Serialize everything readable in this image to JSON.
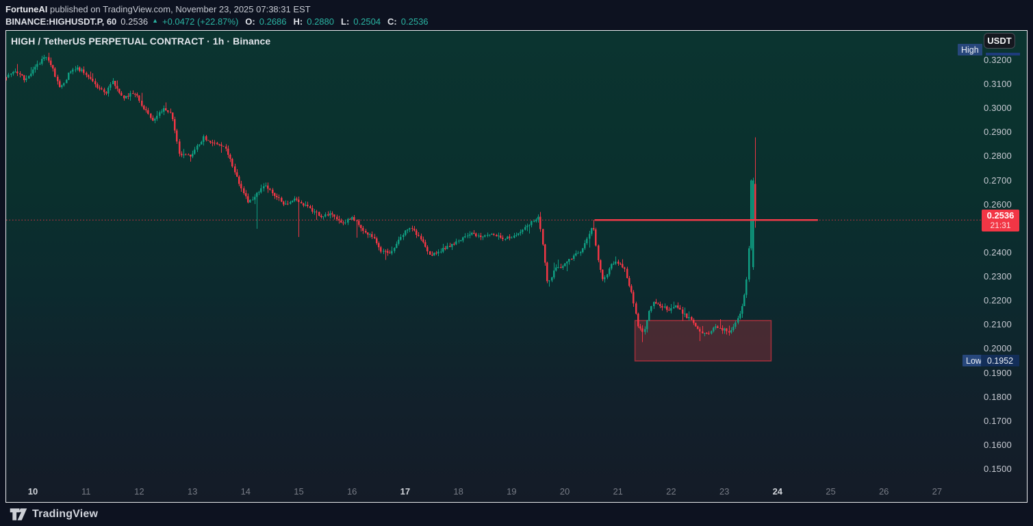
{
  "header": {
    "author": "FortuneAI",
    "published": " published on TradingView.com, November 23, 2025 07:38:31 EST",
    "symbol": {
      "name": "BINANCE:HIGHUSDT.P, 60",
      "last": "0.2536",
      "arrow": "▲",
      "change": "+0.0472 (+22.87%)",
      "o_label": "O:",
      "o_value": "0.2686",
      "h_label": "H:",
      "h_value": "0.2880",
      "l_label": "L:",
      "l_value": "0.2504",
      "c_label": "C:",
      "c_value": "0.2536"
    }
  },
  "chart_title": "HIGH / TetherUS PERPETUAL CONTRACT · 1h · Binance",
  "axis_right": {
    "usdt_button_label": "USDT",
    "high_badge_label": "High",
    "low_badge_label": "Low",
    "low_badge_value": "0.1952",
    "price_badge": {
      "price": "0.2536",
      "countdown": "21:31"
    }
  },
  "footer": {
    "brand": "TradingView"
  },
  "colors": {
    "up": "#0f9e82",
    "down": "#f23645",
    "ray": "#ef3a48",
    "dotted": "#f23645",
    "zone_fill": "rgba(242,54,69,0.25)",
    "zone_border": "rgba(242,54,69,0.6)"
  },
  "chart_data": {
    "type": "candlestick",
    "symbol": "BINANCE:HIGHUSDT.P",
    "exchange": "Binance",
    "interval": "1h",
    "grid": false,
    "price_view_range": [
      0.1367,
      0.3322
    ],
    "visible_days": [
      9.5,
      27.8
    ],
    "y_ticks": [
      {
        "label": "0.3200",
        "price": 0.32
      },
      {
        "label": "0.3100",
        "price": 0.31
      },
      {
        "label": "0.3000",
        "price": 0.3
      },
      {
        "label": "0.2900",
        "price": 0.29
      },
      {
        "label": "0.2800",
        "price": 0.28
      },
      {
        "label": "0.2700",
        "price": 0.27
      },
      {
        "label": "0.2600",
        "price": 0.26
      },
      {
        "label": "0.2400",
        "price": 0.24
      },
      {
        "label": "0.2300",
        "price": 0.23
      },
      {
        "label": "0.2200",
        "price": 0.22
      },
      {
        "label": "0.2100",
        "price": 0.21
      },
      {
        "label": "0.2000",
        "price": 0.2
      },
      {
        "label": "0.1900",
        "price": 0.19
      },
      {
        "label": "0.1800",
        "price": 0.18
      },
      {
        "label": "0.1700",
        "price": 0.17
      },
      {
        "label": "0.1600",
        "price": 0.16
      },
      {
        "label": "0.1500",
        "price": 0.15
      }
    ],
    "x_ticks": [
      {
        "label": "10",
        "day": 10,
        "bold": true
      },
      {
        "label": "11",
        "day": 11,
        "bold": false
      },
      {
        "label": "12",
        "day": 12,
        "bold": false
      },
      {
        "label": "13",
        "day": 13,
        "bold": false
      },
      {
        "label": "14",
        "day": 14,
        "bold": false
      },
      {
        "label": "15",
        "day": 15,
        "bold": false
      },
      {
        "label": "16",
        "day": 16,
        "bold": false
      },
      {
        "label": "17",
        "day": 17,
        "bold": true
      },
      {
        "label": "18",
        "day": 18,
        "bold": false
      },
      {
        "label": "19",
        "day": 19,
        "bold": false
      },
      {
        "label": "20",
        "day": 20,
        "bold": false
      },
      {
        "label": "21",
        "day": 21,
        "bold": false
      },
      {
        "label": "22",
        "day": 22,
        "bold": false
      },
      {
        "label": "23",
        "day": 23,
        "bold": false
      },
      {
        "label": "24",
        "day": 24,
        "bold": true
      },
      {
        "label": "25",
        "day": 25,
        "bold": false
      },
      {
        "label": "26",
        "day": 26,
        "bold": false
      },
      {
        "label": "27",
        "day": 27,
        "bold": false
      }
    ],
    "last_price": 0.2536,
    "countdown": "21:31",
    "session_low_marker": 0.1952,
    "ohlc_last": {
      "o": 0.2686,
      "h": 0.288,
      "l": 0.2504,
      "c": 0.2536
    },
    "levels": {
      "resistance_ray": {
        "price": 0.2536,
        "day_start": 20.56,
        "day_end": 24.76
      },
      "last_price_line": 0.2536
    },
    "zone_box": {
      "day_start": 21.32,
      "day_end": 23.88,
      "price_top": 0.2118,
      "price_bottom": 0.195
    },
    "candles_per_day": 24,
    "day_start": 9.5,
    "day_end": 23.585,
    "price_path_anchors": [
      [
        9.5,
        0.313
      ],
      [
        9.7,
        0.3158
      ],
      [
        9.9,
        0.312
      ],
      [
        10.1,
        0.3178
      ],
      [
        10.3,
        0.3222
      ],
      [
        10.42,
        0.316
      ],
      [
        10.55,
        0.3078
      ],
      [
        10.7,
        0.314
      ],
      [
        10.85,
        0.3168
      ],
      [
        11.0,
        0.315
      ],
      [
        11.2,
        0.3098
      ],
      [
        11.4,
        0.3062
      ],
      [
        11.55,
        0.311
      ],
      [
        11.75,
        0.3042
      ],
      [
        11.95,
        0.3066
      ],
      [
        12.15,
        0.2992
      ],
      [
        12.3,
        0.2948
      ],
      [
        12.5,
        0.3004
      ],
      [
        12.65,
        0.2978
      ],
      [
        12.8,
        0.28
      ],
      [
        13.0,
        0.2806
      ],
      [
        13.25,
        0.2878
      ],
      [
        13.45,
        0.2852
      ],
      [
        13.65,
        0.284
      ],
      [
        13.8,
        0.2756
      ],
      [
        13.95,
        0.2672
      ],
      [
        14.1,
        0.2608
      ],
      [
        14.25,
        0.2648
      ],
      [
        14.4,
        0.268
      ],
      [
        14.6,
        0.2636
      ],
      [
        14.8,
        0.2596
      ],
      [
        15.0,
        0.2624
      ],
      [
        15.2,
        0.2588
      ],
      [
        15.45,
        0.2554
      ],
      [
        15.65,
        0.2562
      ],
      [
        15.85,
        0.2524
      ],
      [
        16.05,
        0.2546
      ],
      [
        16.25,
        0.2498
      ],
      [
        16.45,
        0.2458
      ],
      [
        16.6,
        0.2404
      ],
      [
        16.75,
        0.2398
      ],
      [
        16.95,
        0.2462
      ],
      [
        17.1,
        0.2506
      ],
      [
        17.3,
        0.2472
      ],
      [
        17.5,
        0.2388
      ],
      [
        17.65,
        0.2398
      ],
      [
        17.85,
        0.2428
      ],
      [
        18.05,
        0.2448
      ],
      [
        18.25,
        0.2482
      ],
      [
        18.45,
        0.2462
      ],
      [
        18.65,
        0.2478
      ],
      [
        18.85,
        0.2462
      ],
      [
        19.05,
        0.2468
      ],
      [
        19.25,
        0.2492
      ],
      [
        19.45,
        0.2532
      ],
      [
        19.55,
        0.2556
      ],
      [
        19.63,
        0.242
      ],
      [
        19.72,
        0.2262
      ],
      [
        19.85,
        0.2332
      ],
      [
        20.0,
        0.2342
      ],
      [
        20.2,
        0.2388
      ],
      [
        20.35,
        0.2412
      ],
      [
        20.5,
        0.2478
      ],
      [
        20.57,
        0.252
      ],
      [
        20.66,
        0.238
      ],
      [
        20.76,
        0.228
      ],
      [
        20.88,
        0.2338
      ],
      [
        21.0,
        0.2362
      ],
      [
        21.15,
        0.234
      ],
      [
        21.3,
        0.223
      ],
      [
        21.42,
        0.209
      ],
      [
        21.52,
        0.2068
      ],
      [
        21.62,
        0.2158
      ],
      [
        21.72,
        0.2196
      ],
      [
        21.85,
        0.2176
      ],
      [
        22.0,
        0.2162
      ],
      [
        22.15,
        0.2182
      ],
      [
        22.3,
        0.2138
      ],
      [
        22.45,
        0.2112
      ],
      [
        22.58,
        0.2076
      ],
      [
        22.72,
        0.2062
      ],
      [
        22.85,
        0.2092
      ],
      [
        23.0,
        0.2082
      ],
      [
        23.12,
        0.2072
      ],
      [
        23.25,
        0.2108
      ],
      [
        23.35,
        0.2162
      ],
      [
        23.43,
        0.223
      ],
      [
        23.49,
        0.2352
      ],
      [
        23.54,
        0.27
      ],
      [
        23.585,
        0.2536
      ]
    ],
    "wick_events": [
      {
        "day": 10.3,
        "type": "high",
        "price": 0.3232
      },
      {
        "day": 14.2,
        "type": "low",
        "price": 0.25
      },
      {
        "day": 15.0,
        "type": "low",
        "price": 0.2465
      },
      {
        "day": 16.1,
        "type": "low",
        "price": 0.2462
      },
      {
        "day": 16.62,
        "type": "low",
        "price": 0.237
      },
      {
        "day": 19.55,
        "type": "high",
        "price": 0.257
      },
      {
        "day": 20.56,
        "type": "high",
        "price": 0.2537
      },
      {
        "day": 21.45,
        "type": "low",
        "price": 0.2028
      },
      {
        "day": 22.55,
        "type": "low",
        "price": 0.2032
      }
    ],
    "last_candles": [
      {
        "o": 0.234,
        "h": 0.2712,
        "l": 0.2328,
        "c": 0.27
      },
      {
        "o": 0.2686,
        "h": 0.288,
        "l": 0.2504,
        "c": 0.2536
      }
    ]
  }
}
